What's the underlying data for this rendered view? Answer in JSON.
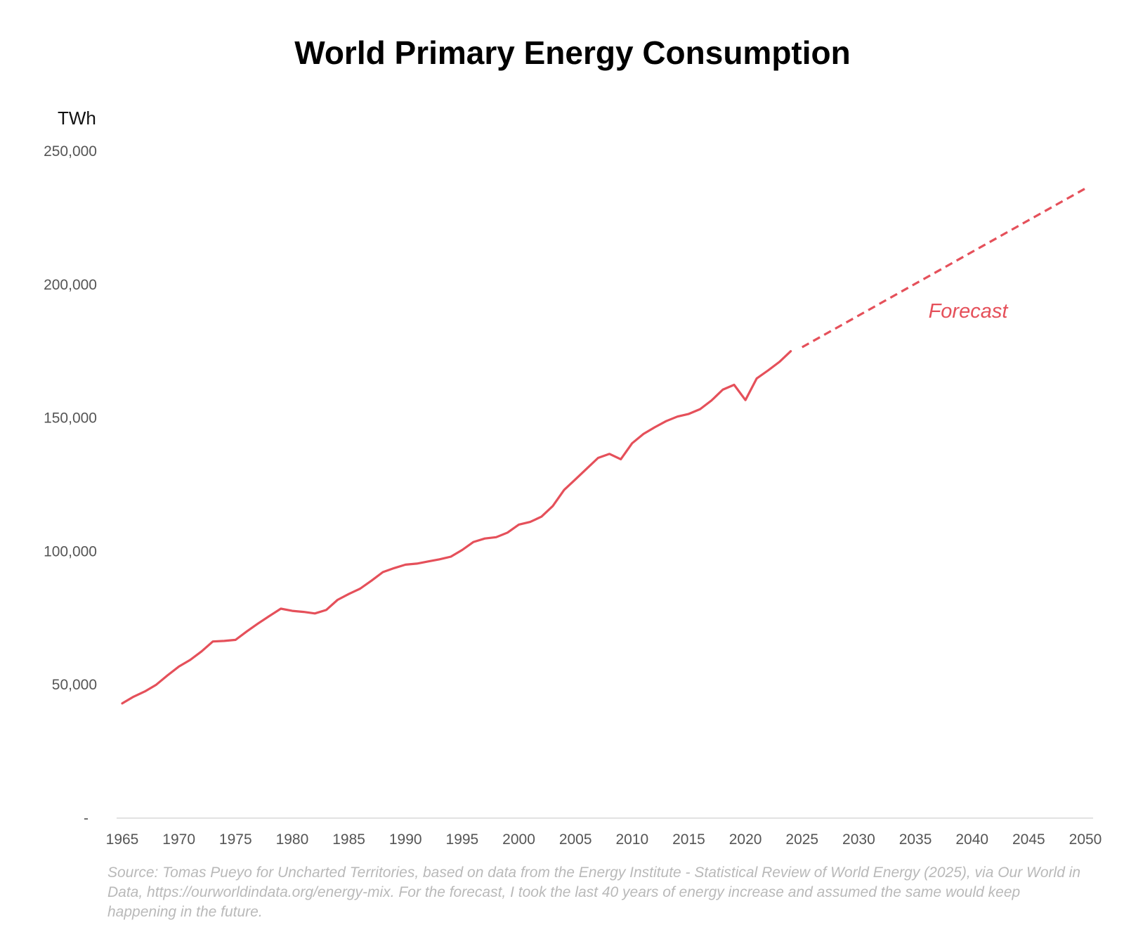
{
  "chart_data": {
    "type": "line",
    "title": "World Primary Energy Consumption",
    "ylabel": "TWh",
    "xlabel": "",
    "xlim": [
      1965,
      2050
    ],
    "ylim": [
      0,
      250000
    ],
    "grid": false,
    "x_ticks": [
      "1965",
      "1970",
      "1975",
      "1980",
      "1985",
      "1990",
      "1995",
      "2000",
      "2005",
      "2010",
      "2015",
      "2020",
      "2025",
      "2030",
      "2035",
      "2040",
      "2045",
      "2050"
    ],
    "y_ticks": [
      {
        "value": 0,
        "label": "-"
      },
      {
        "value": 50000,
        "label": "50,000"
      },
      {
        "value": 100000,
        "label": "100,000"
      },
      {
        "value": 150000,
        "label": "150,000"
      },
      {
        "value": 200000,
        "label": "200,000"
      },
      {
        "value": 250000,
        "label": "250,000"
      }
    ],
    "line_color": "#e5505a",
    "series": [
      {
        "style": "solid",
        "x": [
          1965,
          1966,
          1967,
          1968,
          1969,
          1970,
          1971,
          1972,
          1973,
          1974,
          1975,
          1976,
          1977,
          1978,
          1979,
          1980,
          1981,
          1982,
          1983,
          1984,
          1985,
          1986,
          1987,
          1988,
          1989,
          1990,
          1991,
          1992,
          1993,
          1994,
          1995,
          1996,
          1997,
          1998,
          1999,
          2000,
          2001,
          2002,
          2003,
          2004,
          2005,
          2006,
          2007,
          2008,
          2009,
          2010,
          2011,
          2012,
          2013,
          2014,
          2015,
          2016,
          2017,
          2018,
          2019,
          2020,
          2021,
          2022,
          2023,
          2024
        ],
        "y": [
          43000,
          45500,
          47500,
          50000,
          53500,
          56800,
          59300,
          62500,
          66200,
          66400,
          66800,
          70000,
          73000,
          75800,
          78500,
          77700,
          77300,
          76700,
          78000,
          81800,
          84000,
          86000,
          89000,
          92200,
          93700,
          95000,
          95400,
          96200,
          97000,
          98000,
          100500,
          103500,
          104800,
          105300,
          107000,
          110000,
          111000,
          113000,
          117000,
          123000,
          127000,
          131000,
          135000,
          136500,
          134500,
          140500,
          144000,
          146500,
          148800,
          150500,
          151500,
          153300,
          156500,
          160600,
          162400,
          156700,
          164800,
          167800,
          171000,
          175000
        ]
      },
      {
        "style": "dashed",
        "label": "Forecast",
        "x": [
          2025,
          2050
        ],
        "y": [
          176500,
          236000
        ]
      }
    ]
  },
  "source_note": "Source: Tomas Pueyo for Uncharted Territories, based on data from the Energy Institute - Statistical Review of World Energy (2025), via Our World in Data, https://ourworldindata.org/energy-mix. For the forecast, I took the last 40 years of energy increase and assumed the same would keep happening in the future."
}
